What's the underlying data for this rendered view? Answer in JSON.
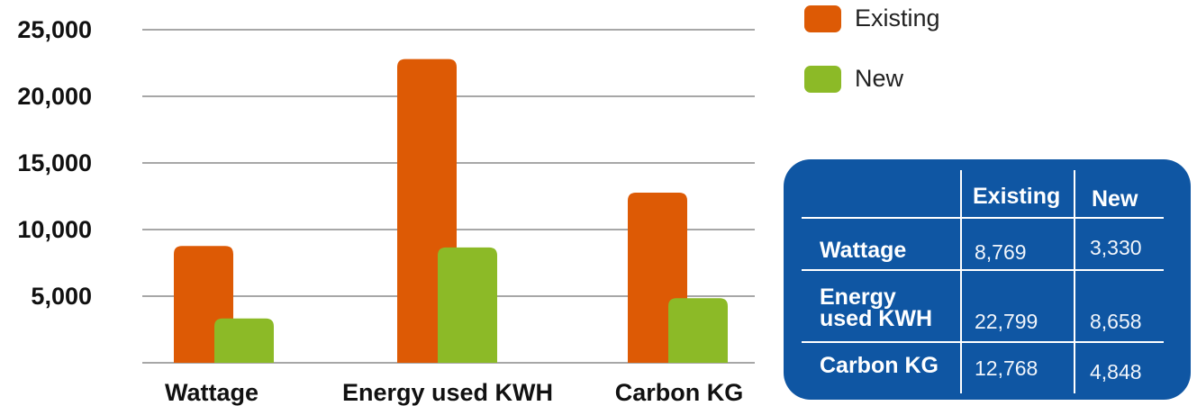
{
  "chart_data": {
    "type": "bar",
    "categories": [
      "Wattage",
      "Energy used KWH",
      "Carbon KG"
    ],
    "series": [
      {
        "name": "Existing",
        "color": "#dd5a05",
        "values": [
          8769,
          22799,
          12768
        ]
      },
      {
        "name": "New",
        "color": "#8cba27",
        "values": [
          3330,
          8658,
          4848
        ]
      }
    ],
    "yticks": [
      "5,000",
      "10,000",
      "15,000",
      "20,000",
      "25,000"
    ],
    "ytick_values": [
      5000,
      10000,
      15000,
      20000,
      25000
    ],
    "ylim": [
      0,
      25000
    ],
    "grid": true,
    "legend_position": "top-right"
  },
  "table": {
    "headers": [
      "",
      "Existing",
      "New"
    ],
    "rows": [
      {
        "label": "Wattage",
        "existing": "8,769",
        "new": "3,330"
      },
      {
        "label": "Energy used KWH",
        "existing": "22,799",
        "new": "8,658"
      },
      {
        "label": "Carbon KG",
        "existing": "12,768",
        "new": "4,848"
      }
    ],
    "background_color": "#0f56a3"
  }
}
